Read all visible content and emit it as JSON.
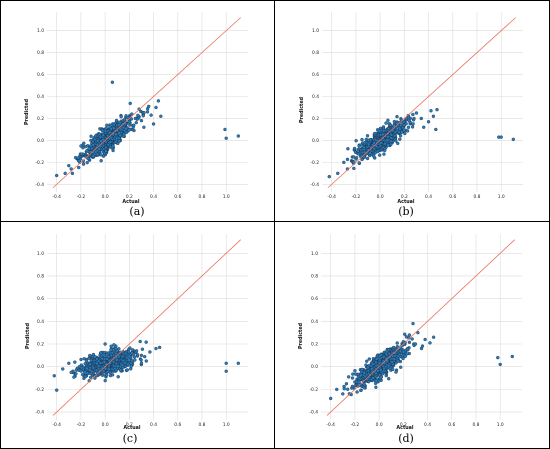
{
  "chart_data": [
    {
      "type": "scatter",
      "caption": "(a)",
      "xlabel": "Actual",
      "ylabel": "Predicted",
      "xlim": [
        -0.48,
        1.18
      ],
      "ylim": [
        -0.47,
        1.17
      ],
      "xticks": [
        -0.4,
        -0.2,
        0.0,
        0.2,
        0.4,
        0.6,
        0.8,
        1.0
      ],
      "yticks": [
        -0.4,
        -0.2,
        0.0,
        0.2,
        0.4,
        0.6,
        0.8,
        1.0
      ],
      "xtick_labels": [
        "-0.4",
        "-0.2",
        "0.0",
        "0.2",
        "0.4",
        "0.6",
        "0.8",
        "1.0"
      ],
      "ytick_labels": [
        "-0.4",
        "-0.2",
        "0.0",
        "0.2",
        "0.4",
        "0.6",
        "0.8",
        "1.0"
      ],
      "grid": true,
      "reference_line": {
        "x": [
          -0.43,
          1.12
        ],
        "y": [
          -0.43,
          1.12
        ],
        "color": "#e8725e"
      },
      "marker_color": "#2a7ab8",
      "cluster": {
        "count": 650,
        "x_center": 0.02,
        "x_spread": 0.1,
        "slope": 0.75,
        "intercept": 0.0,
        "noise": 0.05
      },
      "points": [
        [
          -0.4,
          -0.32
        ],
        [
          -0.33,
          -0.3
        ],
        [
          -0.3,
          -0.23
        ],
        [
          -0.28,
          -0.26
        ],
        [
          -0.27,
          -0.3
        ],
        [
          -0.22,
          -0.16
        ],
        [
          0.06,
          0.53
        ],
        [
          0.2,
          0.17
        ],
        [
          0.22,
          0.24
        ],
        [
          0.25,
          0.2
        ],
        [
          0.3,
          0.18
        ],
        [
          0.32,
          0.12
        ],
        [
          0.35,
          0.26
        ],
        [
          0.36,
          0.31
        ],
        [
          0.38,
          0.23
        ],
        [
          0.4,
          0.15
        ],
        [
          0.42,
          0.3
        ],
        [
          0.44,
          0.36
        ],
        [
          0.46,
          0.22
        ],
        [
          0.99,
          0.1
        ],
        [
          1.0,
          0.02
        ],
        [
          1.1,
          0.04
        ]
      ]
    },
    {
      "type": "scatter",
      "caption": "(b)",
      "xlabel": "Actual",
      "ylabel": "Predicted",
      "xlim": [
        -0.48,
        1.18
      ],
      "ylim": [
        -0.47,
        1.17
      ],
      "xticks": [
        -0.4,
        -0.2,
        0.0,
        0.2,
        0.4,
        0.6,
        0.8,
        1.0
      ],
      "yticks": [
        -0.4,
        -0.2,
        0.0,
        0.2,
        0.4,
        0.6,
        0.8,
        1.0
      ],
      "xtick_labels": [
        "-0.4",
        "-0.2",
        "0.0",
        "0.2",
        "0.4",
        "0.6",
        "0.8",
        "1.0"
      ],
      "ytick_labels": [
        "-0.4",
        "-0.2",
        "0.0",
        "0.2",
        "0.4",
        "0.6",
        "0.8",
        "1.0"
      ],
      "grid": true,
      "reference_line": {
        "x": [
          -0.43,
          1.12
        ],
        "y": [
          -0.43,
          1.12
        ],
        "color": "#e8725e"
      },
      "marker_color": "#2a7ab8",
      "cluster": {
        "count": 650,
        "x_center": 0.02,
        "x_spread": 0.1,
        "slope": 0.65,
        "intercept": 0.0,
        "noise": 0.045
      },
      "points": [
        [
          -0.42,
          -0.33
        ],
        [
          -0.35,
          -0.3
        ],
        [
          -0.3,
          -0.2
        ],
        [
          -0.27,
          -0.26
        ],
        [
          -0.22,
          -0.15
        ],
        [
          0.2,
          0.14
        ],
        [
          0.24,
          0.18
        ],
        [
          0.28,
          0.2
        ],
        [
          0.3,
          0.25
        ],
        [
          0.34,
          0.2
        ],
        [
          0.36,
          0.12
        ],
        [
          0.4,
          0.17
        ],
        [
          0.42,
          0.27
        ],
        [
          0.44,
          0.22
        ],
        [
          0.46,
          0.1
        ],
        [
          0.47,
          0.28
        ],
        [
          0.98,
          0.03
        ],
        [
          1.0,
          0.03
        ],
        [
          1.1,
          0.01
        ]
      ]
    },
    {
      "type": "scatter",
      "caption": "(c)",
      "xlabel": "Actual",
      "ylabel": "Predicted",
      "xlim": [
        -0.48,
        1.18
      ],
      "ylim": [
        -0.47,
        1.17
      ],
      "xticks": [
        -0.4,
        -0.2,
        0.0,
        0.2,
        0.4,
        0.6,
        0.8,
        1.0
      ],
      "yticks": [
        -0.4,
        -0.2,
        0.0,
        0.2,
        0.4,
        0.6,
        0.8,
        1.0
      ],
      "xtick_labels": [
        "-0.4",
        "-0.2",
        "0.0",
        "0.2",
        "0.4",
        "0.6",
        "0.8",
        "1.0"
      ],
      "ytick_labels": [
        "-0.4",
        "-0.2",
        "0.0",
        "0.2",
        "0.4",
        "0.6",
        "0.8",
        "1.0"
      ],
      "grid": true,
      "reference_line": {
        "x": [
          -0.43,
          1.12
        ],
        "y": [
          -0.43,
          1.12
        ],
        "color": "#e8725e"
      },
      "marker_color": "#2a7ab8",
      "cluster": {
        "count": 650,
        "x_center": 0.02,
        "x_spread": 0.11,
        "slope": 0.25,
        "intercept": 0.02,
        "noise": 0.045
      },
      "points": [
        [
          -0.42,
          -0.08
        ],
        [
          -0.35,
          -0.02
        ],
        [
          -0.3,
          0.03
        ],
        [
          -0.28,
          -0.05
        ],
        [
          -0.25,
          0.04
        ],
        [
          0.0,
          0.2
        ],
        [
          0.05,
          0.18
        ],
        [
          0.22,
          0.12
        ],
        [
          0.26,
          0.14
        ],
        [
          0.3,
          0.1
        ],
        [
          0.34,
          0.05
        ],
        [
          0.37,
          0.13
        ],
        [
          0.42,
          0.16
        ],
        [
          0.45,
          0.17
        ],
        [
          1.0,
          0.03
        ],
        [
          1.0,
          -0.04
        ],
        [
          1.1,
          0.03
        ]
      ]
    },
    {
      "type": "scatter",
      "caption": "(d)",
      "xlabel": "Actual",
      "ylabel": "Predicted",
      "xlim": [
        -0.48,
        1.18
      ],
      "ylim": [
        -0.47,
        1.17
      ],
      "xticks": [
        -0.4,
        -0.2,
        0.0,
        0.2,
        0.4,
        0.6,
        0.8,
        1.0
      ],
      "yticks": [
        -0.4,
        -0.2,
        0.0,
        0.2,
        0.4,
        0.6,
        0.8,
        1.0
      ],
      "xtick_labels": [
        "-0.4",
        "-0.2",
        "0.0",
        "0.2",
        "0.4",
        "0.6",
        "0.8",
        "1.0"
      ],
      "ytick_labels": [
        "-0.4",
        "-0.2",
        "0.0",
        "0.2",
        "0.4",
        "0.6",
        "0.8",
        "1.0"
      ],
      "grid": true,
      "reference_line": {
        "x": [
          -0.43,
          1.12
        ],
        "y": [
          -0.43,
          1.12
        ],
        "color": "#e8725e"
      },
      "marker_color": "#2a7ab8",
      "cluster": {
        "count": 650,
        "x_center": 0.02,
        "x_spread": 0.1,
        "slope": 0.7,
        "intercept": 0.0,
        "noise": 0.05
      },
      "points": [
        [
          -0.4,
          -0.28
        ],
        [
          -0.35,
          -0.2
        ],
        [
          -0.3,
          -0.24
        ],
        [
          -0.27,
          -0.15
        ],
        [
          -0.22,
          -0.1
        ],
        [
          0.2,
          0.22
        ],
        [
          0.25,
          0.28
        ],
        [
          0.28,
          0.38
        ],
        [
          0.3,
          0.2
        ],
        [
          0.32,
          0.3
        ],
        [
          0.35,
          0.16
        ],
        [
          0.38,
          0.24
        ],
        [
          0.42,
          0.21
        ],
        [
          0.45,
          0.26
        ],
        [
          0.98,
          0.08
        ],
        [
          1.0,
          0.02
        ],
        [
          1.1,
          0.09
        ]
      ]
    }
  ]
}
